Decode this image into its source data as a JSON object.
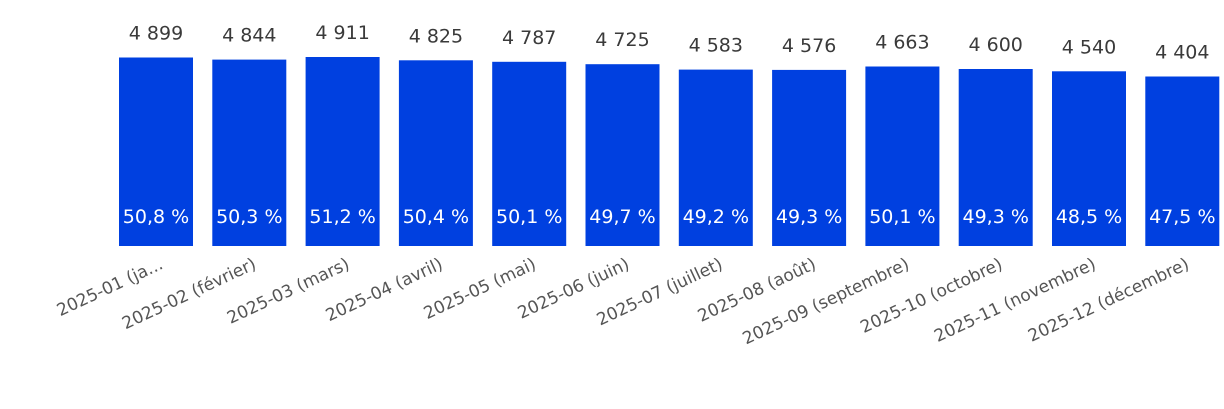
{
  "chart_data": {
    "type": "bar",
    "categories": [
      "2025-01 (ja...",
      "2025-02 (février)",
      "2025-03 (mars)",
      "2025-04 (avril)",
      "2025-05 (mai)",
      "2025-06 (juin)",
      "2025-07 (juillet)",
      "2025-08 (août)",
      "2025-09 (septembre)",
      "2025-10 (octobre)",
      "2025-11 (novembre)",
      "2025-12 (décembre)"
    ],
    "values": [
      4899,
      4844,
      4911,
      4825,
      4787,
      4725,
      4583,
      4576,
      4663,
      4600,
      4540,
      4404
    ],
    "value_labels": [
      "4 899",
      "4 844",
      "4 911",
      "4 825",
      "4 787",
      "4 725",
      "4 583",
      "4 576",
      "4 663",
      "4 600",
      "4 540",
      "4 404"
    ],
    "percent_labels": [
      "50,8 %",
      "50,3 %",
      "51,2 %",
      "50,4 %",
      "50,1 %",
      "49,7 %",
      "49,2 %",
      "49,3 %",
      "50,1 %",
      "49,3 %",
      "48,5 %",
      "47,5 %"
    ],
    "bar_color": "#0040e0",
    "title": "",
    "xlabel": "",
    "ylabel": "",
    "ylim": [
      0,
      4911
    ],
    "grid": false,
    "legend": "none"
  }
}
